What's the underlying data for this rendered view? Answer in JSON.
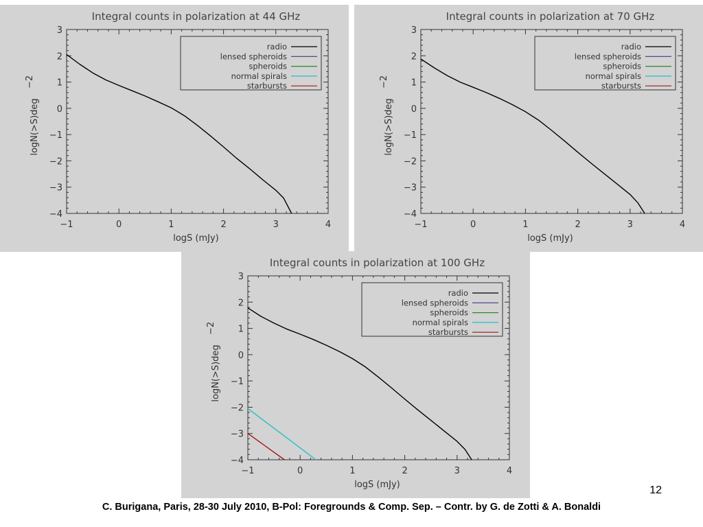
{
  "chart_data": [
    {
      "type": "line",
      "title": "Integral counts in polarization at 44 GHz",
      "xlabel": "logS (mJy)",
      "ylabel": "logN(>S)deg^-2",
      "ylabel_main": "logN(>S)deg",
      "ylabel_sup": "−2",
      "xlim": [
        -1,
        4
      ],
      "ylim": [
        -4,
        3
      ],
      "x_ticks": [
        "−1",
        "0",
        "1",
        "2",
        "3",
        "4"
      ],
      "y_ticks": [
        "−4",
        "−3",
        "−2",
        "−1",
        "0",
        "1",
        "2",
        "3"
      ],
      "legend_position": "top-right",
      "legend": [
        {
          "name": "radio",
          "color": "#000000"
        },
        {
          "name": "lensed spheroids",
          "color": "#3a3a8a"
        },
        {
          "name": "spheroids",
          "color": "#2a8a2a"
        },
        {
          "name": "normal spirals",
          "color": "#20c0c8"
        },
        {
          "name": "starbursts",
          "color": "#a01818"
        }
      ],
      "series": [
        {
          "name": "radio",
          "color": "#000000",
          "x": [
            -1.0,
            -0.75,
            -0.5,
            -0.25,
            0.0,
            0.25,
            0.5,
            0.75,
            1.0,
            1.25,
            1.5,
            1.75,
            2.0,
            2.25,
            2.5,
            2.75,
            3.0,
            3.15,
            3.3
          ],
          "y": [
            2.05,
            1.68,
            1.35,
            1.08,
            0.87,
            0.67,
            0.47,
            0.25,
            0.02,
            -0.28,
            -0.65,
            -1.05,
            -1.47,
            -1.9,
            -2.3,
            -2.72,
            -3.12,
            -3.42,
            -4.0
          ]
        }
      ]
    },
    {
      "type": "line",
      "title": "Integral counts in polarization at 70 GHz",
      "xlabel": "logS (mJy)",
      "ylabel": "logN(>S)deg^-2",
      "ylabel_main": "logN(>S)deg",
      "ylabel_sup": "−2",
      "xlim": [
        -1,
        4
      ],
      "ylim": [
        -4,
        3
      ],
      "x_ticks": [
        "−1",
        "0",
        "1",
        "2",
        "3",
        "4"
      ],
      "y_ticks": [
        "−4",
        "−3",
        "−2",
        "−1",
        "0",
        "1",
        "2",
        "3"
      ],
      "legend_position": "top-right",
      "legend": [
        {
          "name": "radio",
          "color": "#000000"
        },
        {
          "name": "lensed spheroids",
          "color": "#3a3a8a"
        },
        {
          "name": "spheroids",
          "color": "#2a8a2a"
        },
        {
          "name": "normal spirals",
          "color": "#20c0c8"
        },
        {
          "name": "starbursts",
          "color": "#a01818"
        }
      ],
      "series": [
        {
          "name": "radio",
          "color": "#000000",
          "x": [
            -1.0,
            -0.75,
            -0.5,
            -0.25,
            0.0,
            0.25,
            0.5,
            0.75,
            1.0,
            1.25,
            1.5,
            1.75,
            2.0,
            2.25,
            2.5,
            2.75,
            3.0,
            3.15,
            3.28
          ],
          "y": [
            1.88,
            1.55,
            1.25,
            1.0,
            0.8,
            0.6,
            0.38,
            0.14,
            -0.13,
            -0.45,
            -0.84,
            -1.25,
            -1.67,
            -2.08,
            -2.48,
            -2.88,
            -3.28,
            -3.6,
            -4.0
          ]
        }
      ]
    },
    {
      "type": "line",
      "title": "Integral counts in polarization at 100 GHz",
      "xlabel": "logS (mJy)",
      "ylabel": "logN(>S)deg^-2",
      "ylabel_main": "logN(>S)deg",
      "ylabel_sup": "−2",
      "xlim": [
        -1,
        4
      ],
      "ylim": [
        -4,
        3
      ],
      "x_ticks": [
        "−1",
        "0",
        "1",
        "2",
        "3",
        "4"
      ],
      "y_ticks": [
        "−4",
        "−3",
        "−2",
        "−1",
        "0",
        "1",
        "2",
        "3"
      ],
      "legend_position": "top-right",
      "legend": [
        {
          "name": "radio",
          "color": "#000000"
        },
        {
          "name": "lensed spheroids",
          "color": "#3a3a8a"
        },
        {
          "name": "spheroids",
          "color": "#2a8a2a"
        },
        {
          "name": "normal spirals",
          "color": "#20c0c8"
        },
        {
          "name": "starbursts",
          "color": "#a01818"
        }
      ],
      "series": [
        {
          "name": "radio",
          "color": "#000000",
          "x": [
            -1.0,
            -0.75,
            -0.5,
            -0.25,
            0.0,
            0.25,
            0.5,
            0.75,
            1.0,
            1.25,
            1.5,
            1.75,
            2.0,
            2.25,
            2.5,
            2.75,
            3.0,
            3.15,
            3.28
          ],
          "y": [
            1.78,
            1.46,
            1.2,
            0.97,
            0.78,
            0.58,
            0.36,
            0.12,
            -0.15,
            -0.47,
            -0.86,
            -1.27,
            -1.69,
            -2.1,
            -2.5,
            -2.9,
            -3.3,
            -3.6,
            -4.0
          ]
        },
        {
          "name": "normal spirals",
          "color": "#20c0c8",
          "x": [
            -1.0,
            0.3
          ],
          "y": [
            -2.05,
            -4.0
          ]
        },
        {
          "name": "starbursts",
          "color": "#a01818",
          "x": [
            -1.0,
            -0.3
          ],
          "y": [
            -3.0,
            -4.0
          ]
        }
      ]
    }
  ],
  "footer": {
    "page_number": "12",
    "caption": "C. Burigana, Paris, 28-30 July 2010, B-Pol: Foregrounds & Comp. Sep. – Contr. by G. de Zotti & A. Bonaldi"
  }
}
